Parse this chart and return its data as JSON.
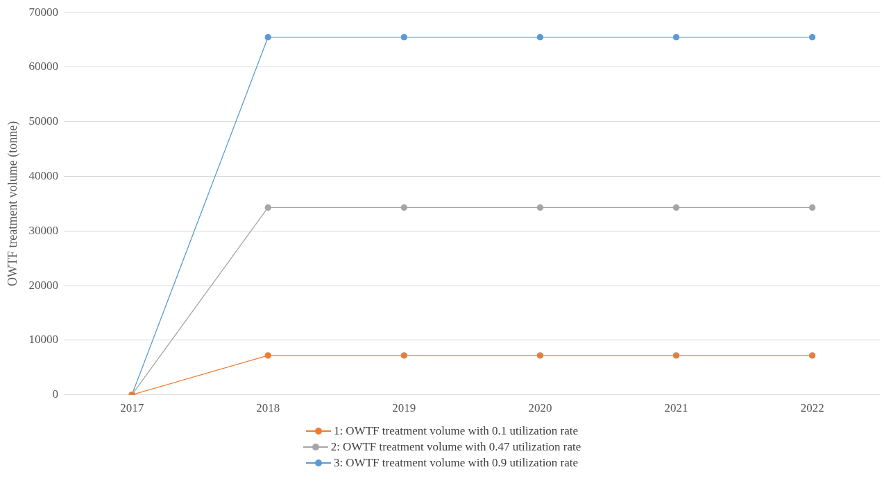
{
  "chart_data": {
    "type": "line",
    "ylabel": "OWTF treatment volume (tonne)",
    "categories": [
      "2017",
      "2018",
      "2019",
      "2020",
      "2021",
      "2022"
    ],
    "series": [
      {
        "name": "1: OWTF treatment volume with 0.1 utilization rate",
        "color": "#ed7d31",
        "values": [
          0,
          7200,
          7200,
          7200,
          7200,
          7200
        ]
      },
      {
        "name": "2: OWTF treatment volume with 0.47 utilization rate",
        "color": "#a5a5a5",
        "values": [
          0,
          34300,
          34300,
          34300,
          34300,
          34300
        ]
      },
      {
        "name": "3: OWTF treatment volume with 0.9 utilization rate",
        "color": "#5b9bd5",
        "values": [
          0,
          65500,
          65500,
          65500,
          65500,
          65500
        ]
      }
    ],
    "ylim": [
      0,
      70000
    ],
    "yticks": [
      0,
      10000,
      20000,
      30000,
      40000,
      50000,
      60000,
      70000
    ],
    "grid": "y",
    "legend": "bottom",
    "marker": "circle",
    "line_style": "solid"
  }
}
